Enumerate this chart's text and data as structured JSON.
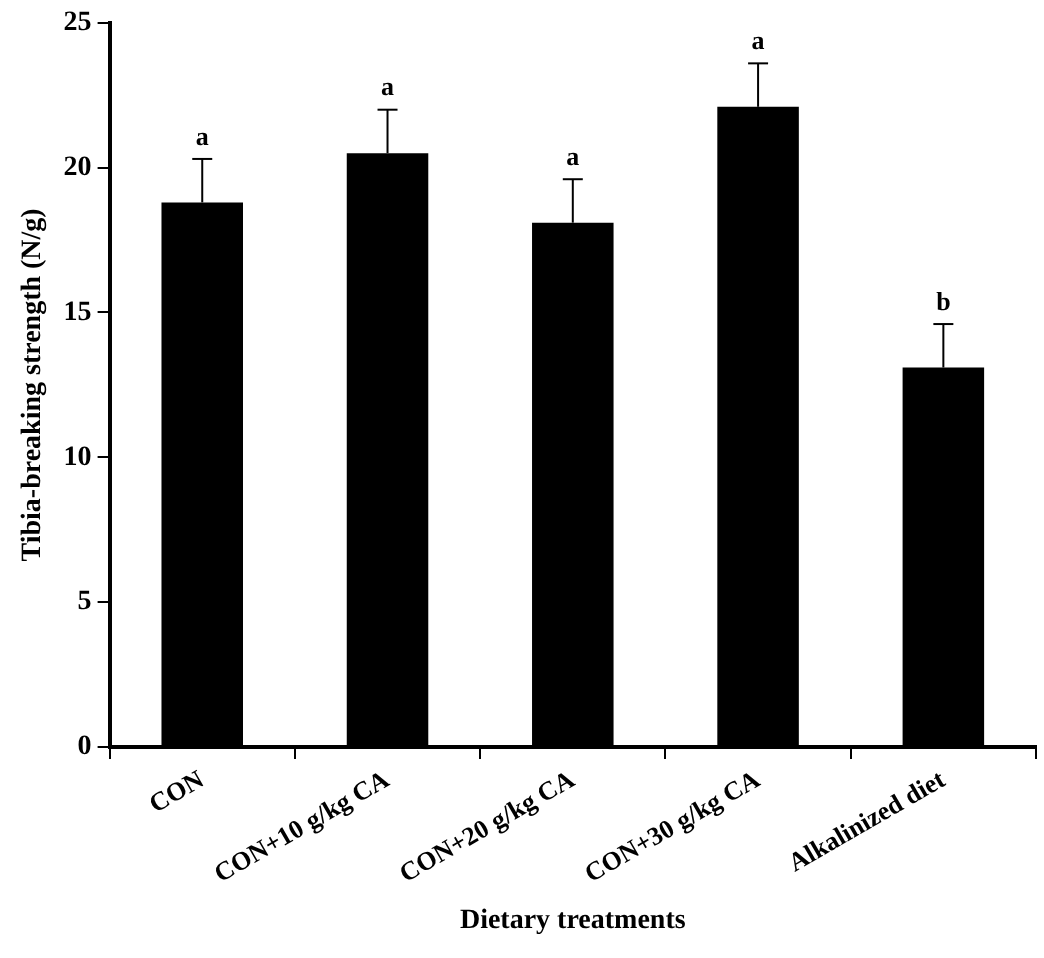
{
  "chart_data": {
    "type": "bar",
    "xlabel": "Dietary treatments",
    "ylabel": "Tibia-breaking strength (N/g)",
    "categories": [
      "CON",
      "CON+10 g/kg CA",
      "CON+20 g/kg CA",
      "CON+30 g/kg CA",
      "Alkalinized diet"
    ],
    "values": [
      18.8,
      20.5,
      18.1,
      22.1,
      13.1
    ],
    "color": "#000000",
    "errors": [
      [
        18.8,
        20.3
      ],
      [
        20.5,
        22.0
      ],
      [
        18.1,
        19.6
      ],
      [
        22.1,
        23.6
      ],
      [
        13.1,
        14.6
      ]
    ],
    "ylim": [
      0,
      25
    ],
    "yticks": [
      0,
      5,
      10,
      15,
      20,
      25
    ],
    "grid": false,
    "legend": false,
    "annotations": [
      {
        "text": "a",
        "x": "CON",
        "y": 20.3
      },
      {
        "text": "a",
        "x": "CON+10 g/kg CA",
        "y": 22.0
      },
      {
        "text": "a",
        "x": "CON+20 g/kg CA",
        "y": 19.6
      },
      {
        "text": "a",
        "x": "CON+30 g/kg CA",
        "y": 23.6
      },
      {
        "text": "b",
        "x": "Alkalinized diet",
        "y": 14.6
      }
    ]
  }
}
